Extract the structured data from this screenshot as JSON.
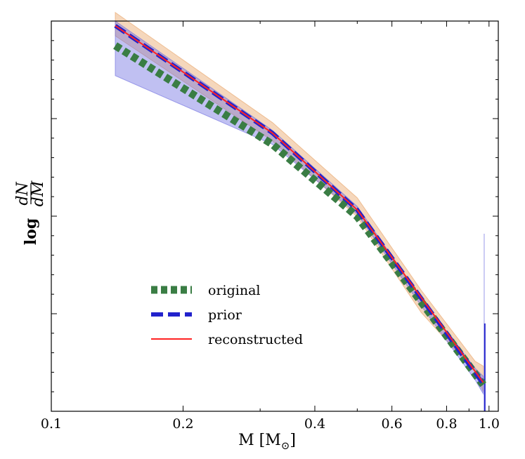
{
  "chart_data": {
    "type": "line",
    "title": "",
    "xlabel": "M [M",
    "xlabel_sub": "⊙",
    "xlabel_close": "]",
    "ylabel": "log",
    "ylabel_num": "dN",
    "ylabel_den": "dM",
    "xscale": "log",
    "xlim": [
      0.1,
      1.05
    ],
    "ylim": [
      0,
      1
    ],
    "x_ticks": [
      0.1,
      0.2,
      0.4,
      0.6,
      0.8,
      1.0
    ],
    "x_tick_labels": [
      "0.1",
      "0.2",
      "0.4",
      "0.6",
      "0.8",
      "1.0"
    ],
    "x_minor_ticks": [
      0.3,
      0.5,
      0.7,
      0.9
    ],
    "y_tick_labels_visible": false,
    "grid": false,
    "legend_position": "lower-left",
    "series": [
      {
        "name": "original",
        "color": "#3a7d44",
        "style": "dotted-thick",
        "x": [
          0.14,
          0.32,
          0.5,
          0.97
        ],
        "y": [
          0.937,
          0.684,
          0.499,
          0.068
        ]
      },
      {
        "name": "prior",
        "color": "#2222cc",
        "style": "dashed",
        "x": [
          0.14,
          0.32,
          0.5,
          0.97
        ],
        "y": [
          0.988,
          0.713,
          0.516,
          0.07
        ]
      },
      {
        "name": "reconstructed",
        "color": "#ff2222",
        "style": "solid",
        "x": [
          0.14,
          0.32,
          0.5,
          0.97
        ],
        "y": [
          0.988,
          0.713,
          0.516,
          0.074
        ]
      }
    ],
    "bands": [
      {
        "color": "#e8a060",
        "x": [
          0.14,
          0.32,
          0.5,
          0.7,
          0.93,
          0.97
        ],
        "upper": [
          1.022,
          0.74,
          0.547,
          0.31,
          0.128,
          0.116
        ],
        "lower": [
          0.962,
          0.693,
          0.498,
          0.253,
          0.1,
          0.05
        ]
      },
      {
        "color": "#6a6ae0",
        "x": [
          0.14,
          0.32,
          0.5,
          0.7,
          0.93,
          0.97
        ],
        "upper": [
          1.0,
          0.72,
          0.525,
          0.29,
          0.11,
          0.09
        ],
        "lower": [
          0.86,
          0.684,
          0.505,
          0.27,
          0.08,
          0.045
        ]
      }
    ],
    "spikes": [
      {
        "x": 0.975,
        "ymin": 0.0,
        "ymax": 0.455,
        "color": "#6a6ae0"
      },
      {
        "x": 0.978,
        "ymin": 0.0,
        "ymax": 0.225,
        "color": "#2222cc"
      }
    ]
  }
}
